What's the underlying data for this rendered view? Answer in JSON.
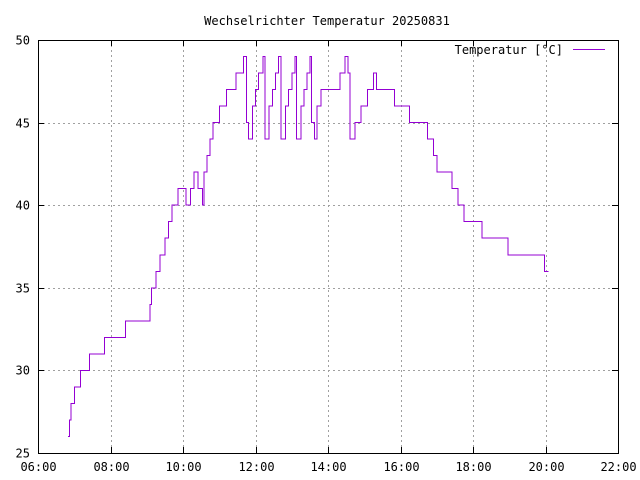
{
  "chart_data": {
    "type": "line",
    "title": "Wechselrichter Temperatur 20250831",
    "xlabel": "",
    "ylabel": "",
    "grid": true,
    "legend_position": "top-right",
    "x_ticks": [
      "06:00",
      "08:00",
      "10:00",
      "12:00",
      "14:00",
      "16:00",
      "18:00",
      "20:00",
      "22:00"
    ],
    "y_ticks": [
      25,
      30,
      35,
      40,
      45,
      50
    ],
    "xlim": [
      "06:00",
      "22:00"
    ],
    "ylim": [
      25,
      50
    ],
    "series": [
      {
        "name": "Temperatur [°C]",
        "color": "#9400d3",
        "points": [
          [
            "06:50",
            26
          ],
          [
            "06:52",
            27
          ],
          [
            "06:55",
            28
          ],
          [
            "07:00",
            29
          ],
          [
            "07:10",
            30
          ],
          [
            "07:25",
            31
          ],
          [
            "07:50",
            32
          ],
          [
            "08:25",
            33
          ],
          [
            "09:05",
            34
          ],
          [
            "09:08",
            35
          ],
          [
            "09:15",
            36
          ],
          [
            "09:22",
            37
          ],
          [
            "09:30",
            38
          ],
          [
            "09:36",
            39
          ],
          [
            "09:42",
            40
          ],
          [
            "09:52",
            41
          ],
          [
            "10:05",
            40
          ],
          [
            "10:12",
            41
          ],
          [
            "10:18",
            42
          ],
          [
            "10:25",
            41
          ],
          [
            "10:32",
            40
          ],
          [
            "10:35",
            42
          ],
          [
            "10:40",
            43
          ],
          [
            "10:45",
            44
          ],
          [
            "10:50",
            45
          ],
          [
            "11:00",
            46
          ],
          [
            "11:12",
            47
          ],
          [
            "11:28",
            48
          ],
          [
            "11:40",
            49
          ],
          [
            "11:45",
            45
          ],
          [
            "11:48",
            44
          ],
          [
            "11:55",
            46
          ],
          [
            "12:00",
            47
          ],
          [
            "12:05",
            48
          ],
          [
            "12:12",
            49
          ],
          [
            "12:16",
            44
          ],
          [
            "12:22",
            46
          ],
          [
            "12:28",
            47
          ],
          [
            "12:33",
            48
          ],
          [
            "12:38",
            49
          ],
          [
            "12:42",
            44
          ],
          [
            "12:50",
            46
          ],
          [
            "12:55",
            47
          ],
          [
            "13:00",
            48
          ],
          [
            "13:05",
            49
          ],
          [
            "13:08",
            44
          ],
          [
            "13:15",
            46
          ],
          [
            "13:20",
            47
          ],
          [
            "13:25",
            48
          ],
          [
            "13:30",
            49
          ],
          [
            "13:33",
            45
          ],
          [
            "13:38",
            44
          ],
          [
            "13:42",
            46
          ],
          [
            "13:48",
            47
          ],
          [
            "14:00",
            47
          ],
          [
            "14:20",
            48
          ],
          [
            "14:28",
            49
          ],
          [
            "14:33",
            48
          ],
          [
            "14:36",
            44
          ],
          [
            "14:45",
            45
          ],
          [
            "14:55",
            46
          ],
          [
            "15:05",
            47
          ],
          [
            "15:15",
            48
          ],
          [
            "15:20",
            47
          ],
          [
            "15:45",
            47
          ],
          [
            "15:50",
            46
          ],
          [
            "16:10",
            46
          ],
          [
            "16:15",
            45
          ],
          [
            "16:40",
            45
          ],
          [
            "16:45",
            44
          ],
          [
            "16:55",
            43
          ],
          [
            "17:00",
            42
          ],
          [
            "17:20",
            42
          ],
          [
            "17:25",
            41
          ],
          [
            "17:35",
            40
          ],
          [
            "17:45",
            39
          ],
          [
            "18:10",
            39
          ],
          [
            "18:15",
            38
          ],
          [
            "18:55",
            38
          ],
          [
            "18:58",
            37
          ],
          [
            "19:55",
            37
          ],
          [
            "19:58",
            36
          ],
          [
            "20:05",
            36
          ]
        ]
      }
    ]
  }
}
